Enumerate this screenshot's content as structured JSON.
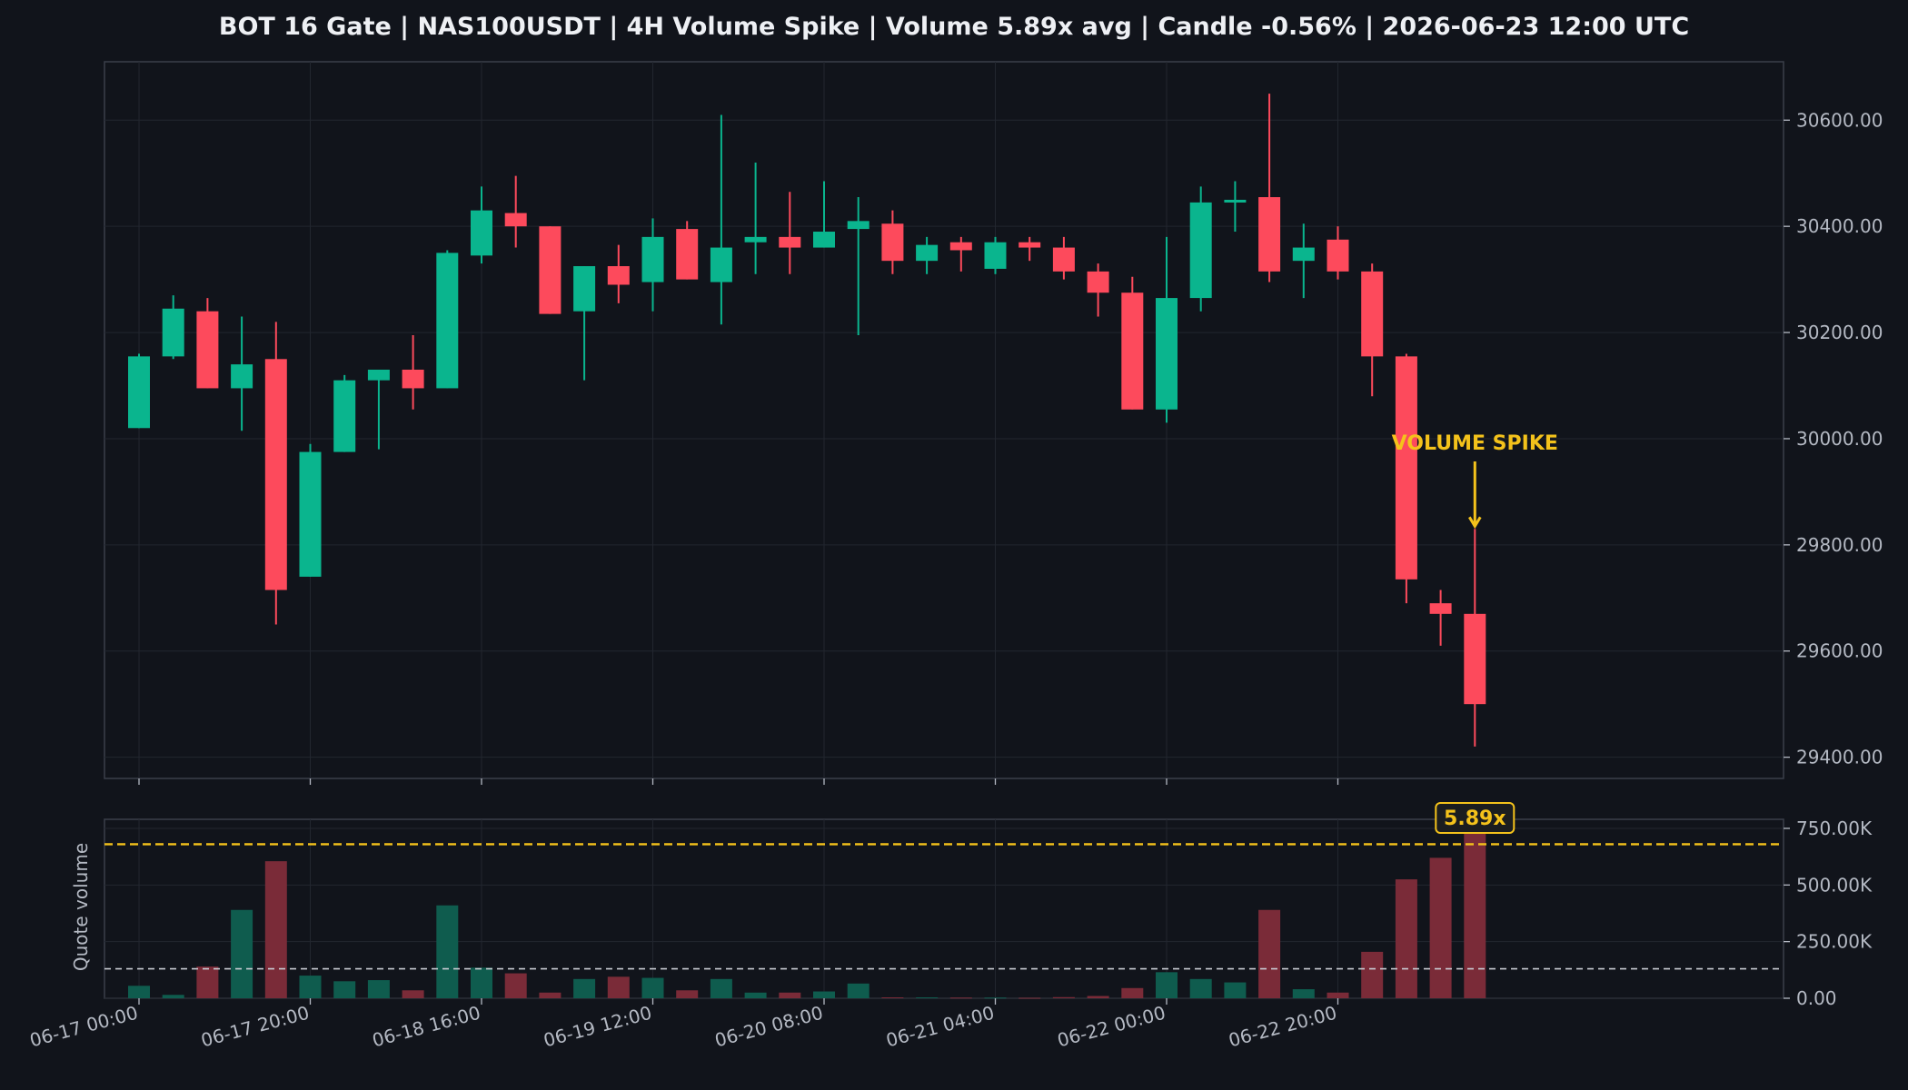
{
  "chart_data": {
    "title": "BOT 16 Gate | NAS100USDT | 4H Volume Spike | Volume 5.89x avg | Candle -0.56% | 2026-06-23 12:00 UTC",
    "type": "candlestick",
    "price_panel": {
      "ylim": [
        29360,
        30710
      ],
      "ytick_labels": [
        "30600.00",
        "30400.00",
        "30200.00",
        "30000.00",
        "29800.00",
        "29600.00",
        "29400.00"
      ],
      "grid": true,
      "annotation": {
        "text": "VOLUME SPIKE",
        "target_candle": "2026-06-23 12:00",
        "color": "#f4c21b"
      }
    },
    "volume_panel": {
      "ylabel": "Quote volume",
      "ylim": [
        0,
        790000
      ],
      "ytick_labels": [
        "750.00K",
        "500.00K",
        "250.00K",
        "0.00"
      ],
      "average_volume": 130000,
      "spike_threshold": 680000,
      "spike_badge": "5.89x"
    },
    "x_tick_labels": [
      "06-17 00:00",
      "06-17 20:00",
      "06-18 16:00",
      "06-19 12:00",
      "06-20 08:00",
      "06-21 04:00",
      "06-22 00:00",
      "06-22 20:00"
    ],
    "candles": [
      {
        "t": "2026-06-17 00:00",
        "o": 30020,
        "h": 30160,
        "l": 30020,
        "c": 30155,
        "v": 55000
      },
      {
        "t": "2026-06-17 04:00",
        "o": 30155,
        "h": 30270,
        "l": 30150,
        "c": 30245,
        "v": 15000
      },
      {
        "t": "2026-06-17 08:00",
        "o": 30240,
        "h": 30265,
        "l": 30095,
        "c": 30095,
        "v": 140000
      },
      {
        "t": "2026-06-17 12:00",
        "o": 30095,
        "h": 30230,
        "l": 30015,
        "c": 30140,
        "v": 390000
      },
      {
        "t": "2026-06-17 16:00",
        "o": 30150,
        "h": 30220,
        "l": 29650,
        "c": 29715,
        "v": 605000
      },
      {
        "t": "2026-06-17 20:00",
        "o": 29740,
        "h": 29990,
        "l": 29740,
        "c": 29975,
        "v": 100000
      },
      {
        "t": "2026-06-18 00:00",
        "o": 29975,
        "h": 30120,
        "l": 29975,
        "c": 30110,
        "v": 75000
      },
      {
        "t": "2026-06-18 04:00",
        "o": 30110,
        "h": 30130,
        "l": 29980,
        "c": 30130,
        "v": 80000
      },
      {
        "t": "2026-06-18 08:00",
        "o": 30130,
        "h": 30195,
        "l": 30055,
        "c": 30095,
        "v": 35000
      },
      {
        "t": "2026-06-18 12:00",
        "o": 30095,
        "h": 30355,
        "l": 30095,
        "c": 30350,
        "v": 410000
      },
      {
        "t": "2026-06-18 16:00",
        "o": 30345,
        "h": 30475,
        "l": 30330,
        "c": 30430,
        "v": 135000
      },
      {
        "t": "2026-06-18 20:00",
        "o": 30425,
        "h": 30495,
        "l": 30360,
        "c": 30400,
        "v": 110000
      },
      {
        "t": "2026-06-19 00:00",
        "o": 30400,
        "h": 30400,
        "l": 30235,
        "c": 30235,
        "v": 25000
      },
      {
        "t": "2026-06-19 04:00",
        "o": 30240,
        "h": 30325,
        "l": 30110,
        "c": 30325,
        "v": 85000
      },
      {
        "t": "2026-06-19 08:00",
        "o": 30325,
        "h": 30365,
        "l": 30255,
        "c": 30290,
        "v": 95000
      },
      {
        "t": "2026-06-19 12:00",
        "o": 30295,
        "h": 30415,
        "l": 30240,
        "c": 30380,
        "v": 90000
      },
      {
        "t": "2026-06-19 16:00",
        "o": 30395,
        "h": 30410,
        "l": 30300,
        "c": 30300,
        "v": 35000
      },
      {
        "t": "2026-06-19 20:00",
        "o": 30295,
        "h": 30610,
        "l": 30215,
        "c": 30360,
        "v": 85000
      },
      {
        "t": "2026-06-20 00:00",
        "o": 30370,
        "h": 30520,
        "l": 30310,
        "c": 30380,
        "v": 25000
      },
      {
        "t": "2026-06-20 04:00",
        "o": 30380,
        "h": 30465,
        "l": 30310,
        "c": 30360,
        "v": 25000
      },
      {
        "t": "2026-06-20 08:00",
        "o": 30360,
        "h": 30485,
        "l": 30360,
        "c": 30390,
        "v": 30000
      },
      {
        "t": "2026-06-20 12:00",
        "o": 30395,
        "h": 30455,
        "l": 30195,
        "c": 30410,
        "v": 65000
      },
      {
        "t": "2026-06-20 16:00",
        "o": 30405,
        "h": 30430,
        "l": 30310,
        "c": 30335,
        "v": 4000
      },
      {
        "t": "2026-06-20 20:00",
        "o": 30335,
        "h": 30380,
        "l": 30310,
        "c": 30365,
        "v": 4000
      },
      {
        "t": "2026-06-21 00:00",
        "o": 30370,
        "h": 30380,
        "l": 30315,
        "c": 30355,
        "v": 3000
      },
      {
        "t": "2026-06-21 04:00",
        "o": 30320,
        "h": 30380,
        "l": 30310,
        "c": 30370,
        "v": 3000
      },
      {
        "t": "2026-06-21 08:00",
        "o": 30370,
        "h": 30380,
        "l": 30335,
        "c": 30360,
        "v": 2000
      },
      {
        "t": "2026-06-21 12:00",
        "o": 30360,
        "h": 30380,
        "l": 30300,
        "c": 30315,
        "v": 5000
      },
      {
        "t": "2026-06-21 16:00",
        "o": 30315,
        "h": 30330,
        "l": 30230,
        "c": 30275,
        "v": 10000
      },
      {
        "t": "2026-06-21 20:00",
        "o": 30275,
        "h": 30305,
        "l": 30055,
        "c": 30055,
        "v": 45000
      },
      {
        "t": "2026-06-22 00:00",
        "o": 30055,
        "h": 30380,
        "l": 30030,
        "c": 30265,
        "v": 115000
      },
      {
        "t": "2026-06-22 04:00",
        "o": 30265,
        "h": 30475,
        "l": 30240,
        "c": 30445,
        "v": 85000
      },
      {
        "t": "2026-06-22 08:00",
        "o": 30445,
        "h": 30485,
        "l": 30390,
        "c": 30450,
        "v": 70000
      },
      {
        "t": "2026-06-22 12:00",
        "o": 30455,
        "h": 30650,
        "l": 30295,
        "c": 30315,
        "v": 390000
      },
      {
        "t": "2026-06-22 16:00",
        "o": 30335,
        "h": 30405,
        "l": 30265,
        "c": 30360,
        "v": 40000
      },
      {
        "t": "2026-06-22 20:00",
        "o": 30375,
        "h": 30400,
        "l": 30300,
        "c": 30315,
        "v": 25000
      },
      {
        "t": "2026-06-23 00:00",
        "o": 30315,
        "h": 30330,
        "l": 30080,
        "c": 30155,
        "v": 205000
      },
      {
        "t": "2026-06-23 04:00",
        "o": 30155,
        "h": 30160,
        "l": 29690,
        "c": 29735,
        "v": 525000
      },
      {
        "t": "2026-06-23 08:00",
        "o": 29690,
        "h": 29715,
        "l": 29610,
        "c": 29670,
        "v": 620000
      },
      {
        "t": "2026-06-23 12:00",
        "o": 29670,
        "h": 29830,
        "l": 29420,
        "c": 29500,
        "v": 770000
      }
    ]
  },
  "colors": {
    "background": "#11141b",
    "plot_background": "#11141b",
    "up": "#0ab58e",
    "down": "#fd4a5c",
    "up_volume": "#0f5c4e",
    "down_volume": "#7a2b38",
    "grid": "#22262f",
    "spine": "#3a3f4a",
    "text": "#b4b9c3",
    "spike": "#f4c21b"
  }
}
